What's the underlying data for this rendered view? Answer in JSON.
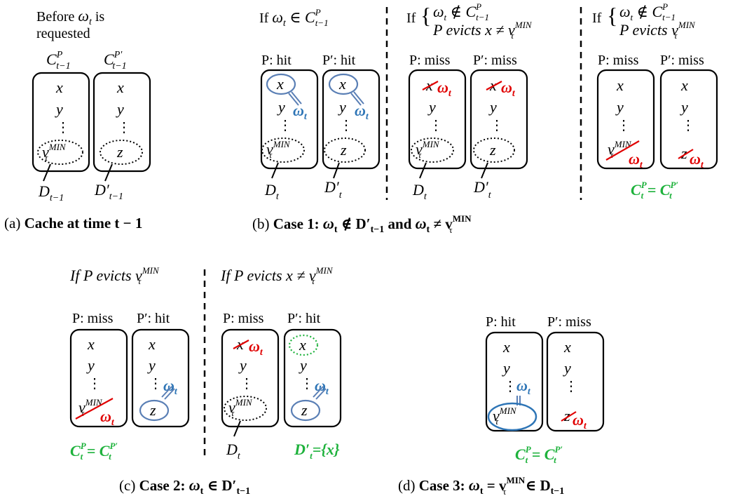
{
  "colors": {
    "black": "#000000",
    "blue": "#2e75b6",
    "red": "#e00000",
    "green": "#1eb23c",
    "circle": "#5a7fb5"
  },
  "panel_a": {
    "before_line1": "Before ",
    "before_omega": "ω",
    "before_sub": "t",
    "before_line1_tail": " is",
    "before_line2": "requested",
    "label_cache1": "C",
    "label_cache1_sup": "P",
    "label_cache1_sub": "t−1",
    "label_cache2": "C",
    "label_cache2_sup": "P′",
    "label_cache2_sub": "t−1",
    "item_x": "x",
    "item_y": "y",
    "dots": "⋮",
    "vmin_v": "v",
    "vmin_sup": "MIN",
    "vmin_sub": "τ",
    "item_z": "z",
    "d1": "D",
    "d1_sub": "t−1",
    "d2": "D′",
    "d2_sub": "t−1",
    "caption_prefix": "(a) ",
    "caption_bold": "Cache at time t − 1"
  },
  "panel_b": {
    "case_a_cond_if": "If ",
    "case_a_cond": "ω",
    "case_a_cond_sub": "t",
    "case_a_in": " ∈ C",
    "case_a_in_sup": "P",
    "case_a_in_sub": "t−1",
    "hit_p": "P: hit",
    "hit_pp": "P′: hit",
    "case_b_if": "If",
    "case_b_line1": "ω",
    "case_b_line1_rest": " ∉ C",
    "case_b_line2": "P evicts x ≠ v",
    "miss_p": "P: miss",
    "miss_pp": "P′: miss",
    "case_c_if": "If",
    "case_c_line1_rest": " ∉ C",
    "case_c_line2": "P evicts  v",
    "eq_text": "C",
    "eq_sup1": "P",
    "eq_sub": "t",
    "eq_mid": " = C",
    "eq_sup2": "P′",
    "d_t": "D",
    "d_t_sub": "t",
    "dp_t": "D′",
    "caption_prefix": "(b) ",
    "caption_bold": "Case 1: ",
    "caption_math1": "ω",
    "caption_math1_sub": "t",
    "caption_notin": " ∉ D′",
    "caption_notin_sub": "t−1",
    "caption_and": " and ",
    "caption_neq": " ≠ v",
    "caption_neq_sup": "MIN",
    "caption_neq_sub": "τ"
  },
  "panel_c": {
    "cond1": "If P evicts v",
    "cond2": "If P evicts x ≠ v",
    "miss_p": "P: miss",
    "hit_pp": "P′: hit",
    "dprime_eq": "D′",
    "dprime_eq_tail": "={x}",
    "caption_prefix": "(c) ",
    "caption_bold": "Case 2: ",
    "caption_math": " ∈ D′",
    "caption_math_sub": "t−1"
  },
  "panel_d": {
    "hit_p": "P: hit",
    "miss_pp": "P′: miss",
    "caption_prefix": "(d) ",
    "caption_bold": "Case 3: ",
    "caption_eq": " = v",
    "caption_in": " ∈ D",
    "caption_in_sub": "t−1"
  }
}
